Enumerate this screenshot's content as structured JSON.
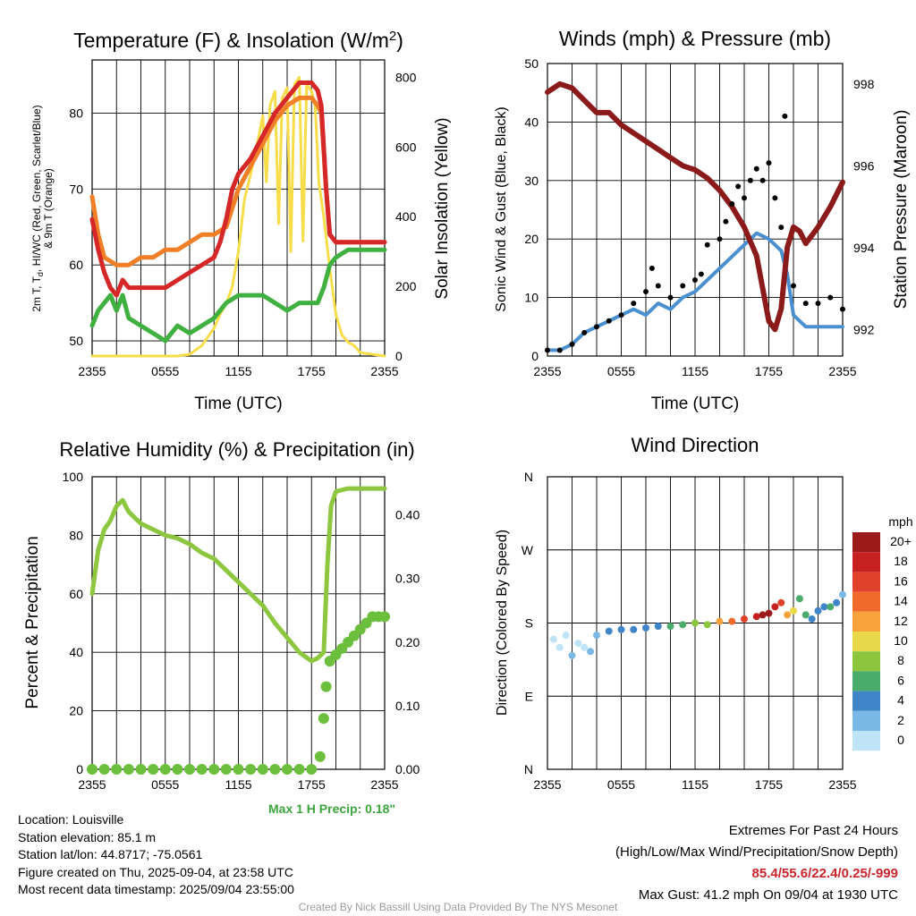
{
  "chart_data": [
    {
      "type": "line",
      "title": "Temperature (F) & Insolation (W/m",
      "title_sup": "2",
      "title_close": ")",
      "xlabel": "Time (UTC)",
      "ylabel_left_lines": [
        "2m T, T",
        "d",
        ", HI/WC (Red, Green, Scarlet/Blue)",
        "& 9m T (Orange)"
      ],
      "ylabel_right": "Solar Insolation (Yellow)",
      "x_ticks": [
        "2355",
        "0555",
        "1155",
        "1755",
        "2355"
      ],
      "ylim": [
        48,
        87
      ],
      "yticks": [
        50,
        60,
        70,
        80
      ],
      "y2lim": [
        0,
        850
      ],
      "y2ticks": [
        0,
        200,
        400,
        600,
        800
      ],
      "x_hours": [
        0,
        24
      ],
      "series": [
        {
          "color": "#d62728",
          "axis": "left",
          "x": [
            0,
            0.5,
            1,
            1.5,
            2,
            2.5,
            3,
            4,
            5,
            6,
            7,
            8,
            9,
            10,
            10.5,
            11,
            11.5,
            12,
            13,
            14,
            15,
            16,
            17,
            18,
            18.5,
            18.8,
            19.2,
            19.5,
            20,
            21,
            22,
            23,
            24
          ],
          "y": [
            66,
            62,
            59,
            57,
            56,
            58,
            57,
            57,
            57,
            57,
            58,
            59,
            60,
            61,
            63,
            66,
            70,
            72,
            74,
            77,
            80,
            82,
            84,
            84,
            83,
            81,
            70,
            64,
            63,
            63,
            63,
            63,
            63
          ]
        },
        {
          "color": "#f07f27",
          "axis": "left",
          "x": [
            0,
            0.5,
            1,
            2,
            3,
            4,
            5,
            6,
            7,
            8,
            9,
            10,
            11,
            12,
            13,
            14,
            15,
            16,
            17,
            18,
            18.5,
            18.8,
            19.2,
            19.5,
            20,
            21,
            22,
            23,
            24
          ],
          "y": [
            69,
            64,
            61,
            60,
            60,
            61,
            61,
            62,
            62,
            63,
            64,
            64,
            65,
            70,
            73,
            76,
            79,
            81,
            82,
            82,
            81,
            80,
            70,
            64,
            63,
            63,
            63,
            63,
            63
          ]
        },
        {
          "color": "#40b040",
          "axis": "left",
          "x": [
            0,
            0.5,
            1,
            1.5,
            2,
            2.5,
            3,
            4,
            5,
            6,
            7,
            8,
            9,
            10,
            11,
            12,
            13,
            14,
            15,
            16,
            17,
            18,
            18.5,
            19,
            19.5,
            20,
            21,
            22,
            23,
            24
          ],
          "y": [
            52,
            54,
            55,
            56,
            54,
            56,
            53,
            52,
            51,
            50,
            52,
            51,
            52,
            53,
            55,
            56,
            56,
            56,
            55,
            54,
            55,
            55,
            55,
            57,
            60,
            61,
            62,
            62,
            62,
            62
          ]
        },
        {
          "color": "#f7dd4a",
          "axis": "right",
          "x": [
            0,
            1,
            2,
            3,
            4,
            5,
            6,
            7,
            8,
            9,
            10,
            10.5,
            11,
            11.5,
            12,
            12.5,
            13,
            13.5,
            14,
            14.3,
            14.6,
            15,
            15.3,
            15.6,
            16,
            16.3,
            16.6,
            17,
            17.3,
            17.6,
            18,
            18.3,
            18.6,
            19,
            19.5,
            20,
            20.5,
            21,
            21.5,
            22,
            23,
            24
          ],
          "y": [
            0,
            0,
            0,
            0,
            0,
            0,
            0,
            0,
            5,
            30,
            80,
            120,
            150,
            200,
            300,
            450,
            520,
            600,
            690,
            500,
            720,
            760,
            380,
            740,
            770,
            300,
            780,
            800,
            330,
            780,
            760,
            720,
            500,
            400,
            250,
            120,
            60,
            40,
            30,
            10,
            5,
            0
          ]
        }
      ]
    },
    {
      "type": "line",
      "title": "Winds (mph) & Pressure (mb)",
      "xlabel": "Time (UTC)",
      "ylabel_left": "Sonic Wind & Gust (Blue, Black)",
      "ylabel_right": "Station Pressure (Maroon)",
      "x_ticks": [
        "2355",
        "0555",
        "1155",
        "1755",
        "2355"
      ],
      "ylim": [
        0,
        50
      ],
      "yticks": [
        0,
        10,
        20,
        30,
        40,
        50
      ],
      "y2lim": [
        991.35,
        998.5
      ],
      "y2ticks": [
        992,
        994,
        996,
        998
      ],
      "series": [
        {
          "color": "#4a90d0",
          "axis": "left",
          "x": [
            0,
            1,
            2,
            3,
            4,
            5,
            6,
            7,
            8,
            9,
            10,
            11,
            12,
            13,
            14,
            15,
            16,
            17,
            18,
            18.5,
            19,
            19.5,
            20,
            21,
            22,
            23,
            24
          ],
          "y": [
            1,
            1,
            2,
            4,
            5,
            6,
            7,
            8,
            7,
            9,
            8,
            10,
            11,
            13,
            15,
            17,
            19,
            21,
            20,
            19,
            18,
            14,
            7,
            5,
            5,
            5,
            5
          ]
        },
        {
          "color": "#8b1a1a",
          "axis": "right",
          "x": [
            0,
            1,
            2,
            3,
            4,
            5,
            6,
            7,
            8,
            9,
            10,
            11,
            12,
            13,
            14,
            15,
            16,
            17,
            17.5,
            18,
            18.5,
            19,
            19.5,
            20,
            20.5,
            21,
            22,
            23,
            24
          ],
          "y": [
            997.8,
            998.0,
            997.9,
            997.6,
            997.3,
            997.3,
            997.0,
            996.8,
            996.6,
            996.4,
            996.2,
            996.0,
            995.9,
            995.7,
            995.4,
            995.0,
            994.5,
            993.8,
            993.0,
            992.2,
            992.0,
            992.5,
            994.0,
            994.5,
            994.4,
            994.1,
            994.5,
            995.0,
            995.6
          ]
        },
        {
          "color": "#000000",
          "axis": "left",
          "kind": "points",
          "x": [
            0,
            1,
            2,
            3,
            4,
            5,
            6,
            7,
            8,
            8.5,
            9,
            10,
            11,
            12,
            12.5,
            13,
            14,
            14.5,
            15,
            15.5,
            16,
            16.5,
            17,
            17.5,
            18,
            18.5,
            19,
            19.3,
            20,
            21,
            22,
            23,
            24
          ],
          "y": [
            1,
            1,
            2,
            4,
            5,
            6,
            7,
            9,
            11,
            15,
            12,
            10,
            12,
            13,
            14,
            19,
            20,
            23,
            26,
            29,
            27,
            30,
            32,
            30,
            33,
            27,
            22,
            41,
            12,
            9,
            9,
            10,
            8
          ]
        }
      ]
    },
    {
      "type": "line",
      "title": "Relative Humidity (%) & Precipitation (in)",
      "ylabel_left": "Percent & Precipitation",
      "x_ticks": [
        "2355",
        "0555",
        "1155",
        "1755",
        "2355"
      ],
      "ylim": [
        0,
        100
      ],
      "yticks": [
        0,
        20,
        40,
        60,
        80,
        100
      ],
      "y2lim": [
        0,
        0.46
      ],
      "y2ticks": [
        "0.00",
        "0.10",
        "0.20",
        "0.30",
        "0.40"
      ],
      "series": [
        {
          "color": "#8dc63f",
          "axis": "left",
          "x": [
            0,
            0.5,
            1,
            1.5,
            2,
            2.5,
            3,
            3.5,
            4,
            5,
            6,
            7,
            8,
            9,
            10,
            11,
            12,
            13,
            14,
            15,
            16,
            17,
            18,
            18.5,
            19,
            19.3,
            19.6,
            20,
            21,
            22,
            23,
            24
          ],
          "y": [
            60,
            75,
            82,
            85,
            90,
            92,
            88,
            86,
            84,
            82,
            80,
            79,
            77,
            74,
            72,
            68,
            64,
            60,
            56,
            50,
            45,
            40,
            37,
            38,
            40,
            70,
            90,
            95,
            96,
            96,
            96,
            96
          ]
        },
        {
          "color": "#6cbf3c",
          "axis": "right",
          "kind": "points",
          "x": [
            0,
            1,
            2,
            3,
            4,
            5,
            6,
            7,
            8,
            9,
            10,
            11,
            12,
            13,
            14,
            15,
            16,
            17,
            18,
            18.7,
            19,
            19.2,
            19.5,
            20,
            20.5,
            21,
            21.5,
            22,
            22.5,
            23,
            23.5,
            24
          ],
          "y": [
            0,
            0,
            0,
            0,
            0,
            0,
            0,
            0,
            0,
            0,
            0,
            0,
            0,
            0,
            0,
            0,
            0,
            0,
            0,
            0.02,
            0.08,
            0.13,
            0.17,
            0.18,
            0.19,
            0.2,
            0.21,
            0.22,
            0.23,
            0.24,
            0.24,
            0.24
          ]
        }
      ],
      "note": "Max 1 H Precip: 0.18\""
    },
    {
      "type": "scatter",
      "title": "Wind Direction",
      "ylabel_left": "Direction (Colored By Speed)",
      "x_ticks": [
        "2355",
        "0555",
        "1155",
        "1755",
        "2355"
      ],
      "yticks": [
        "N",
        "E",
        "S",
        "W",
        "N"
      ],
      "ylim": [
        0,
        360
      ],
      "colorbar": {
        "title": "mph",
        "labels": [
          "20+",
          "18",
          "16",
          "14",
          "12",
          "10",
          "8",
          "6",
          "4",
          "2",
          "0"
        ],
        "colors": [
          "#9b1b1b",
          "#c72020",
          "#e0412b",
          "#f06a2a",
          "#f7a23b",
          "#e8d84a",
          "#8cc63f",
          "#4aab6b",
          "#3f85c8",
          "#7ab8e6",
          "#bfe3f7"
        ]
      },
      "points_hour": [
        0.5,
        1,
        1.5,
        2,
        2.5,
        3,
        3.5,
        4,
        5,
        6,
        7,
        8,
        9,
        10,
        11,
        12,
        13,
        14,
        15,
        16,
        17,
        17.5,
        18,
        18.5,
        19,
        19.5,
        20,
        20.5,
        21,
        21.5,
        22,
        22.5,
        23,
        23.5,
        24
      ],
      "points_deg": [
        160,
        150,
        165,
        140,
        155,
        150,
        145,
        165,
        170,
        172,
        172,
        174,
        176,
        176,
        178,
        180,
        178,
        182,
        182,
        185,
        188,
        190,
        192,
        200,
        205,
        190,
        195,
        210,
        190,
        185,
        195,
        200,
        200,
        205,
        215
      ],
      "points_speed": [
        1,
        1,
        1,
        2,
        1,
        1,
        2,
        3,
        4,
        4,
        4,
        5,
        5,
        6,
        7,
        8,
        9,
        12,
        14,
        16,
        18,
        20,
        20,
        19,
        17,
        13,
        10,
        7,
        6,
        5,
        4,
        5,
        6,
        4,
        3
      ]
    }
  ],
  "info_left": [
    "Location: Louisville",
    "Station elevation: 85.1 m",
    "Station lat/lon: 44.8717; -75.0561",
    "Figure created on Thu, 2025-09-04, at 23:58 UTC",
    "Most recent data timestamp: 2025/09/04 23:55:00"
  ],
  "extremes_title": "Extremes For Past 24 Hours",
  "extremes_subtitle": "(High/Low/Max Wind/Precipitation/Snow Depth)",
  "extremes_values": "85.4/55.6/22.4/0.25/-999",
  "max_gust": "Max Gust: 41.2 mph On 09/04 at 1930 UTC",
  "credit": "Created By Nick Bassill Using Data Provided By The NYS Mesonet",
  "colors": {
    "extremes": "#c8262c",
    "precip_note": "#3da53d"
  }
}
